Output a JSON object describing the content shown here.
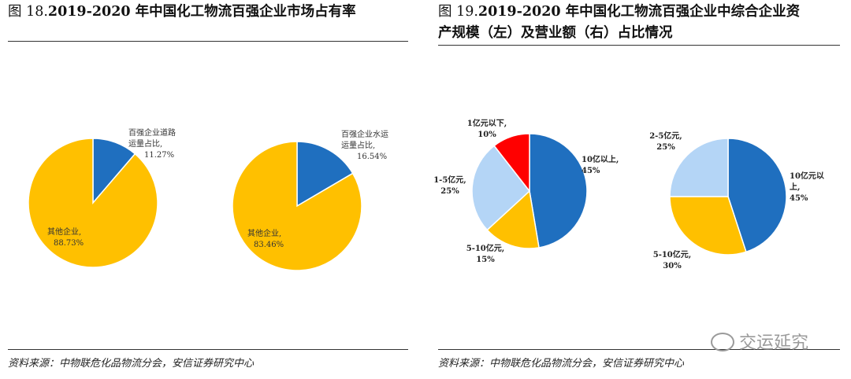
{
  "colors": {
    "blue": "#1f6fbf",
    "yellow": "#ffc000",
    "red": "#ff0000",
    "lightblue": "#b4d5f6"
  },
  "left_panel": {
    "fig_label": "图 18.",
    "title": "2019-2020 年中国化工物流百强企业市场占有率",
    "source": "资料来源：中物联危化品物流分会，安信证券研究中心"
  },
  "right_panel": {
    "fig_label": "图 19.",
    "title_line1": "2019-2020 年中国化工物流百强企业中综合企业资",
    "title_line2": "产规模（左）及营业额（右）占比情况",
    "source": "资料来源：中物联危化品物流分会，安信证券研究中心"
  },
  "watermark": "交运延究",
  "chart_data": [
    {
      "type": "pie",
      "slices": [
        {
          "label_lines": [
            "百强企业道路",
            "运量占比,"
          ],
          "value_text": "11.27%",
          "value": 11.27,
          "color": "#1f6fbf"
        },
        {
          "label_lines": [
            "其他企业,"
          ],
          "value_text": "88.73%",
          "value": 88.73,
          "color": "#ffc000"
        }
      ]
    },
    {
      "type": "pie",
      "slices": [
        {
          "label_lines": [
            "百强企业水运",
            "运量占比,"
          ],
          "value_text": "16.54%",
          "value": 16.54,
          "color": "#1f6fbf"
        },
        {
          "label_lines": [
            "其他企业,"
          ],
          "value_text": "83.46%",
          "value": 83.46,
          "color": "#ffc000"
        }
      ]
    },
    {
      "type": "pie",
      "slices": [
        {
          "label_lines": [
            "10亿以上,"
          ],
          "value_text": "45%",
          "value": 45,
          "color": "#1f6fbf"
        },
        {
          "label_lines": [
            "5-10亿元,"
          ],
          "value_text": "15%",
          "value": 15,
          "color": "#ffc000"
        },
        {
          "label_lines": [
            "1-5亿元,"
          ],
          "value_text": "25%",
          "value": 25,
          "color": "#b4d5f6"
        },
        {
          "label_lines": [
            "1亿元以下,"
          ],
          "value_text": "10%",
          "value": 10,
          "color": "#ff0000"
        }
      ]
    },
    {
      "type": "pie",
      "slices": [
        {
          "label_lines": [
            "10亿元以",
            "上,"
          ],
          "value_text": "45%",
          "value": 45,
          "color": "#1f6fbf"
        },
        {
          "label_lines": [
            "5-10亿元,"
          ],
          "value_text": "30%",
          "value": 30,
          "color": "#ffc000"
        },
        {
          "label_lines": [
            "2-5亿元,"
          ],
          "value_text": "25%",
          "value": 25,
          "color": "#b4d5f6"
        }
      ]
    }
  ]
}
